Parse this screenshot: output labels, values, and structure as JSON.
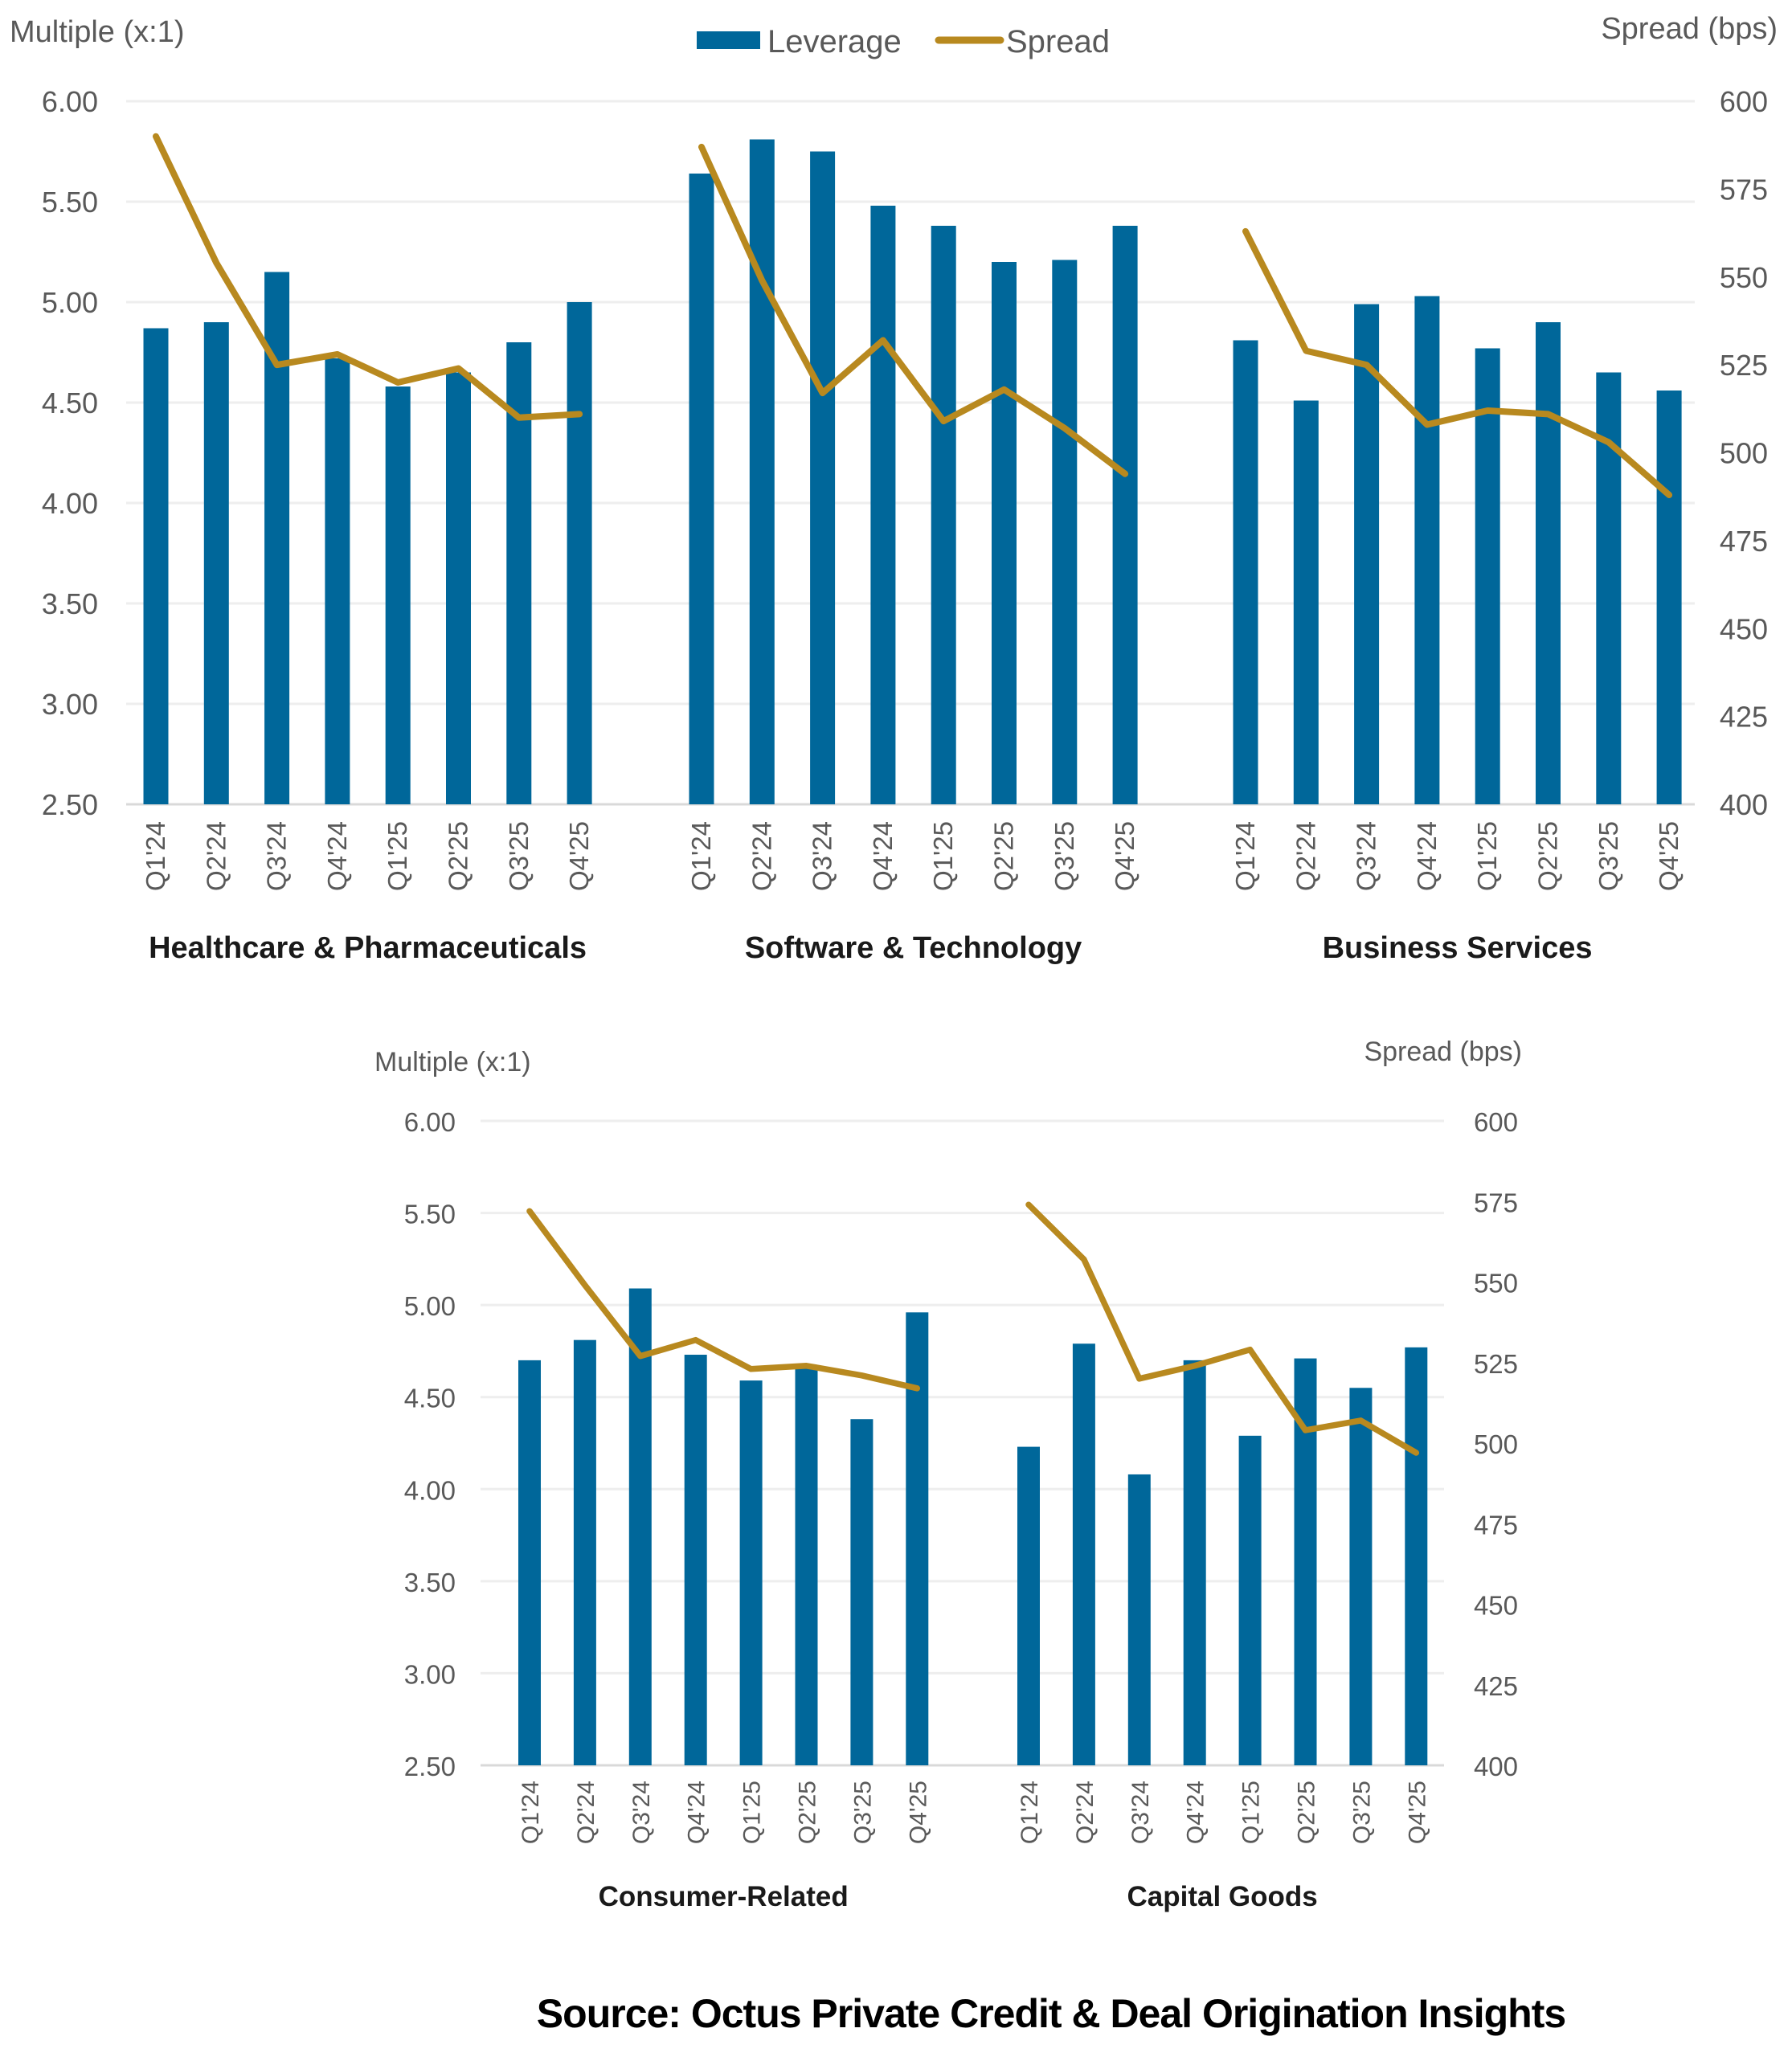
{
  "legend": {
    "leverage_label": "Leverage",
    "spread_label": "Spread"
  },
  "colors": {
    "leverage": "#00679A",
    "spread": "#B8891F"
  },
  "source": "Source: Octus Private Credit & Deal Origination Insights",
  "chart_data": [
    {
      "type": "bar+line",
      "row": "top",
      "title": "Healthcare & Pharmaceuticals",
      "ylabel": "Multiple (x:1)",
      "y2label": "Spread (bps)",
      "ylim": [
        2.5,
        6.0
      ],
      "y2lim": [
        400,
        600
      ],
      "yticks": [
        "2.50",
        "3.00",
        "3.50",
        "4.00",
        "4.50",
        "5.00",
        "5.50",
        "6.00"
      ],
      "y2ticks": [
        "400",
        "425",
        "450",
        "475",
        "500",
        "525",
        "550",
        "575",
        "600"
      ],
      "grid": true,
      "categories": [
        "Q1'24",
        "Q2'24",
        "Q3'24",
        "Q4'24",
        "Q1'25",
        "Q2'25",
        "Q3'25",
        "Q4'25"
      ],
      "series": [
        {
          "name": "Leverage",
          "axis": "left",
          "kind": "bar",
          "values": [
            4.87,
            4.9,
            5.15,
            4.72,
            4.58,
            4.65,
            4.8,
            5.0
          ]
        },
        {
          "name": "Spread",
          "axis": "right",
          "kind": "line",
          "values": [
            590,
            554,
            525,
            528,
            520,
            524,
            510,
            511
          ]
        }
      ]
    },
    {
      "type": "bar+line",
      "row": "top",
      "title": "Software & Technology",
      "ylim": [
        2.5,
        6.0
      ],
      "y2lim": [
        400,
        600
      ],
      "categories": [
        "Q1'24",
        "Q2'24",
        "Q3'24",
        "Q4'24",
        "Q1'25",
        "Q2'25",
        "Q3'25",
        "Q4'25"
      ],
      "series": [
        {
          "name": "Leverage",
          "axis": "left",
          "kind": "bar",
          "values": [
            5.64,
            5.81,
            5.75,
            5.48,
            5.38,
            5.2,
            5.21,
            5.38
          ]
        },
        {
          "name": "Spread",
          "axis": "right",
          "kind": "line",
          "values": [
            587,
            549,
            517,
            532,
            509,
            518,
            507,
            494
          ]
        }
      ]
    },
    {
      "type": "bar+line",
      "row": "top",
      "title": "Business Services",
      "ylim": [
        2.5,
        6.0
      ],
      "y2lim": [
        400,
        600
      ],
      "categories": [
        "Q1'24",
        "Q2'24",
        "Q3'24",
        "Q4'24",
        "Q1'25",
        "Q2'25",
        "Q3'25",
        "Q4'25"
      ],
      "series": [
        {
          "name": "Leverage",
          "axis": "left",
          "kind": "bar",
          "values": [
            4.81,
            4.51,
            4.99,
            5.03,
            4.77,
            4.9,
            4.65,
            4.56
          ]
        },
        {
          "name": "Spread",
          "axis": "right",
          "kind": "line",
          "values": [
            563,
            529,
            525,
            508,
            512,
            511,
            503,
            488
          ]
        }
      ]
    },
    {
      "type": "bar+line",
      "row": "bottom",
      "title": "Consumer-Related",
      "ylabel": "Multiple (x:1)",
      "y2label": "Spread (bps)",
      "ylim": [
        2.5,
        6.0
      ],
      "y2lim": [
        400,
        600
      ],
      "yticks": [
        "2.50",
        "3.00",
        "3.50",
        "4.00",
        "4.50",
        "5.00",
        "5.50",
        "6.00"
      ],
      "y2ticks": [
        "400",
        "425",
        "450",
        "475",
        "500",
        "525",
        "550",
        "575",
        "600"
      ],
      "grid": true,
      "categories": [
        "Q1'24",
        "Q2'24",
        "Q3'24",
        "Q4'24",
        "Q1'25",
        "Q2'25",
        "Q3'25",
        "Q4'25"
      ],
      "series": [
        {
          "name": "Leverage",
          "axis": "left",
          "kind": "bar",
          "values": [
            4.7,
            4.81,
            5.09,
            4.73,
            4.59,
            4.66,
            4.38,
            4.96
          ]
        },
        {
          "name": "Spread",
          "axis": "right",
          "kind": "line",
          "values": [
            572,
            549,
            527,
            532,
            523,
            524,
            521,
            517
          ]
        }
      ]
    },
    {
      "type": "bar+line",
      "row": "bottom",
      "title": "Capital Goods",
      "ylim": [
        2.5,
        6.0
      ],
      "y2lim": [
        400,
        600
      ],
      "categories": [
        "Q1'24",
        "Q2'24",
        "Q3'24",
        "Q4'24",
        "Q1'25",
        "Q2'25",
        "Q3'25",
        "Q4'25"
      ],
      "series": [
        {
          "name": "Leverage",
          "axis": "left",
          "kind": "bar",
          "values": [
            4.23,
            4.79,
            4.08,
            4.7,
            4.29,
            4.71,
            4.55,
            4.77
          ]
        },
        {
          "name": "Spread",
          "axis": "right",
          "kind": "line",
          "values": [
            574,
            557,
            520,
            524,
            529,
            504,
            507,
            497
          ]
        }
      ]
    }
  ]
}
